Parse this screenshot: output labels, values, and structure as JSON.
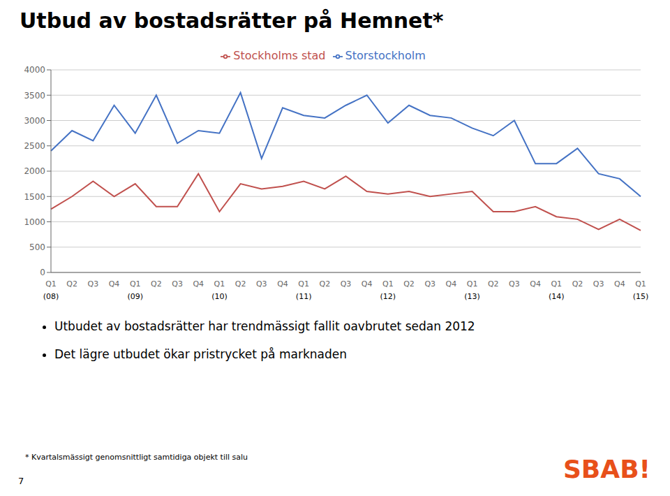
{
  "chart_data": {
    "type": "line",
    "title": "Utbud av bostadsrätter på Hemnet*",
    "categories": [
      "Q1",
      "Q2",
      "Q3",
      "Q4",
      "Q1",
      "Q2",
      "Q3",
      "Q4",
      "Q1",
      "Q2",
      "Q3",
      "Q4",
      "Q1",
      "Q2",
      "Q3",
      "Q4",
      "Q1",
      "Q2",
      "Q3",
      "Q4",
      "Q1",
      "Q2",
      "Q3",
      "Q4",
      "Q1",
      "Q2",
      "Q3",
      "Q4",
      "Q1"
    ],
    "series": [
      {
        "name": "Storstockholm",
        "color": "#4472C4",
        "values": [
          2400,
          2800,
          2600,
          3300,
          2750,
          3500,
          2550,
          2800,
          2750,
          3550,
          2250,
          3250,
          3100,
          3050,
          3300,
          3500,
          2950,
          3300,
          3100,
          3050,
          2850,
          2700,
          3000,
          2150,
          2150,
          2450,
          1950,
          1850,
          1500
        ]
      },
      {
        "name": "Stockholms stad",
        "color": "#C0504D",
        "values": [
          1250,
          1500,
          1800,
          1500,
          1750,
          1300,
          1300,
          1950,
          1200,
          1750,
          1650,
          1700,
          1800,
          1650,
          1900,
          1600,
          1550,
          1600,
          1500,
          1550,
          1600,
          1200,
          1200,
          1300,
          1100,
          1050,
          850,
          1050,
          830
        ]
      }
    ],
    "ylim": [
      0,
      4000
    ],
    "yticks": [
      0,
      500,
      1000,
      1500,
      2000,
      2500,
      3000,
      3500,
      4000
    ],
    "grid": true,
    "legend": "top",
    "annotations": [
      {
        "x": 0,
        "text": "(08)"
      },
      {
        "x": 4,
        "text": "(09)"
      },
      {
        "x": 8,
        "text": "(10)"
      },
      {
        "x": 12,
        "text": "(11)"
      },
      {
        "x": 16,
        "text": "(12)"
      },
      {
        "x": 20,
        "text": "(13)"
      },
      {
        "x": 24,
        "text": "(14)"
      },
      {
        "x": 28,
        "text": "(15)"
      }
    ],
    "bullets": [
      "Utbudet av bostadsrätter har trendmässigt fallit oavbrutet sedan 2012",
      "Det lägre utbudet ökar pristrycket på marknaden"
    ],
    "footnote": "* Kvartalsmässigt genomsnittligt samtidiga objekt till salu",
    "page_number": "7",
    "logo": {
      "text": "SBAB!",
      "color": "#E8501A"
    }
  }
}
